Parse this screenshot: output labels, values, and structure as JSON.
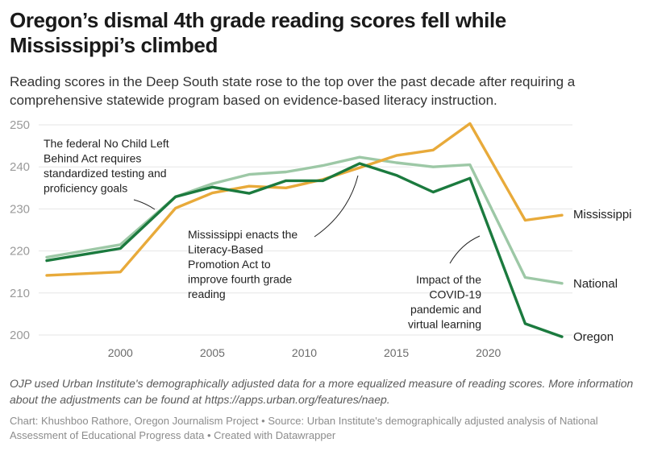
{
  "header": {
    "title": "Oregon’s dismal 4th grade reading scores fell while Mississippi’s climbed",
    "subtitle": "Reading scores in the Deep South state rose to the top over the past decade after requiring a comprehensive statewide program based on evidence-based literacy instruction."
  },
  "chart_data": {
    "type": "line",
    "title": "Oregon’s dismal 4th grade reading scores fell while Mississippi’s climbed",
    "xlabel": "",
    "ylabel": "",
    "xlim": [
      1996,
      2024
    ],
    "ylim": [
      200,
      250
    ],
    "grid": true,
    "yticks": [
      200,
      210,
      220,
      230,
      240,
      250
    ],
    "xticks": [
      2000,
      2005,
      2010,
      2015,
      2020
    ],
    "legend": "inline-right",
    "x": [
      1996,
      2000,
      2003,
      2005,
      2007,
      2009,
      2011,
      2013,
      2015,
      2017,
      2019,
      2022,
      2024
    ],
    "series": [
      {
        "name": "National",
        "color": "#9dc8a6",
        "values": [
          218.5,
          221.5,
          232.9,
          236.0,
          238.2,
          238.8,
          240.3,
          242.3,
          241.0,
          240.0,
          240.5,
          213.7,
          212.3
        ]
      },
      {
        "name": "Mississippi",
        "color": "#e8aa3a",
        "values": [
          214.2,
          215.0,
          230.2,
          233.8,
          235.4,
          235.0,
          237.0,
          239.8,
          242.7,
          244.0,
          250.3,
          227.3,
          228.5
        ]
      },
      {
        "name": "Oregon",
        "color": "#1b7a3e",
        "values": [
          217.7,
          220.6,
          232.9,
          235.2,
          233.7,
          236.7,
          236.7,
          240.8,
          238.0,
          234.0,
          237.3,
          202.7,
          199.6
        ]
      }
    ],
    "annotations": [
      {
        "id": "nclb",
        "lines": [
          "The federal No Child Left",
          "Behind Act requires",
          "standardized testing and",
          "proficiency goals"
        ],
        "x": 2002,
        "y": 230
      },
      {
        "id": "lbpa",
        "lines": [
          "Mississippi enacts the",
          "Literacy-Based",
          "Promotion Act to",
          "improve fourth grade",
          "reading"
        ],
        "x": 2013,
        "y": 240
      },
      {
        "id": "covid",
        "lines": [
          "Impact of the",
          "COVID-19",
          "pandemic and",
          "virtual learning"
        ],
        "x": 2019.5,
        "y": 225
      }
    ]
  },
  "footer": {
    "note": "OJP used Urban Institute's demographically adjusted data for a more equalized measure of reading scores. More information about the adjustments can be found at https://apps.urban.org/features/naep.",
    "credits": "Chart: Khushboo Rathore, Oregon Journalism Project • Source: Urban Institute's demographically adjusted analysis of National Assessment of Educational Progress data • Created with Datawrapper"
  }
}
